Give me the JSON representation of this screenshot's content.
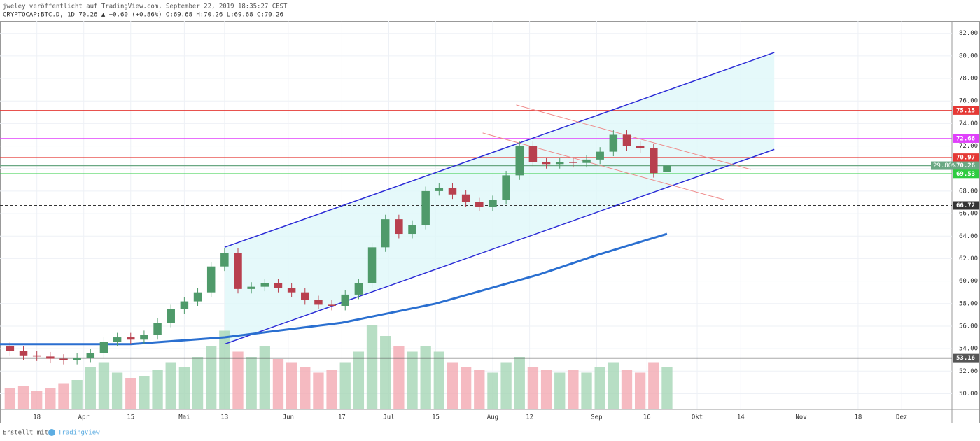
{
  "header": {
    "line1": "jweley veröffentlicht auf TradingView.com, September 22, 2019 18:35:27 CEST",
    "line2": "CRYPTOCAP:BTC.D, 1D 70.26 ▲ +0.60 (+0.86%) O:69.68 H:70.26 L:69.68 C:70.26"
  },
  "footer": {
    "made_with": "Erstellt mit",
    "brand": "TradingView"
  },
  "chart_data": {
    "type": "candlestick",
    "x": [
      "2019-03-10",
      "2019-03-14",
      "2019-03-18",
      "2019-03-22",
      "2019-03-26",
      "2019-03-30",
      "2019-04-03",
      "2019-04-07",
      "2019-04-11",
      "2019-04-15",
      "2019-04-19",
      "2019-04-23",
      "2019-04-27",
      "2019-05-01",
      "2019-05-05",
      "2019-05-09",
      "2019-05-13",
      "2019-05-17",
      "2019-05-21",
      "2019-05-25",
      "2019-05-29",
      "2019-06-02",
      "2019-06-06",
      "2019-06-10",
      "2019-06-14",
      "2019-06-18",
      "2019-06-22",
      "2019-06-26",
      "2019-06-30",
      "2019-07-04",
      "2019-07-08",
      "2019-07-12",
      "2019-07-16",
      "2019-07-20",
      "2019-07-24",
      "2019-07-28",
      "2019-08-01",
      "2019-08-05",
      "2019-08-09",
      "2019-08-13",
      "2019-08-17",
      "2019-08-21",
      "2019-08-25",
      "2019-08-29",
      "2019-09-02",
      "2019-09-06",
      "2019-09-10",
      "2019-09-14",
      "2019-09-18",
      "2019-09-22"
    ],
    "open": [
      54.2,
      53.8,
      53.4,
      53.3,
      53.1,
      53.0,
      53.2,
      53.6,
      54.6,
      55.0,
      54.8,
      55.2,
      56.3,
      57.5,
      58.2,
      59.0,
      61.3,
      62.5,
      59.3,
      59.5,
      59.8,
      59.4,
      59.0,
      58.3,
      57.9,
      57.8,
      58.8,
      59.8,
      63.0,
      65.5,
      64.2,
      65.0,
      68.0,
      68.3,
      67.7,
      67.0,
      66.6,
      67.2,
      69.4,
      72.0,
      70.6,
      70.4,
      70.6,
      70.5,
      70.8,
      71.5,
      73.0,
      72.0,
      71.8,
      69.68
    ],
    "high": [
      54.6,
      54.2,
      53.8,
      53.7,
      53.5,
      53.6,
      54.0,
      55.0,
      55.4,
      55.4,
      55.6,
      56.7,
      57.9,
      58.6,
      59.4,
      61.7,
      62.9,
      62.9,
      59.9,
      60.2,
      60.2,
      59.8,
      59.4,
      58.7,
      58.3,
      59.2,
      60.2,
      63.4,
      65.9,
      65.9,
      65.4,
      68.4,
      68.7,
      68.7,
      68.1,
      67.4,
      67.6,
      69.8,
      72.4,
      72.4,
      71.0,
      71.0,
      71.0,
      71.2,
      71.9,
      73.4,
      73.4,
      72.4,
      72.2,
      70.26
    ],
    "low": [
      53.4,
      53.0,
      52.9,
      52.7,
      52.6,
      52.6,
      52.8,
      53.2,
      54.2,
      54.4,
      54.4,
      54.8,
      55.9,
      57.1,
      57.8,
      58.6,
      60.9,
      58.9,
      58.9,
      59.1,
      59.0,
      58.6,
      57.9,
      57.5,
      57.4,
      57.4,
      58.4,
      59.4,
      62.6,
      63.8,
      63.8,
      64.6,
      67.6,
      67.3,
      66.6,
      66.2,
      66.2,
      66.8,
      69.0,
      70.2,
      70.0,
      70.0,
      70.1,
      70.1,
      70.4,
      71.1,
      71.6,
      71.4,
      69.2,
      69.68
    ],
    "close": [
      53.8,
      53.4,
      53.3,
      53.1,
      53.0,
      53.2,
      53.6,
      54.6,
      55.0,
      54.8,
      55.2,
      56.3,
      57.5,
      58.2,
      59.0,
      61.3,
      62.5,
      59.3,
      59.5,
      59.8,
      59.4,
      59.0,
      58.3,
      57.9,
      57.8,
      58.8,
      59.8,
      63.0,
      65.5,
      64.2,
      65.0,
      68.0,
      68.3,
      67.7,
      67.0,
      66.6,
      67.2,
      69.4,
      72.0,
      70.6,
      70.4,
      70.6,
      70.5,
      70.8,
      71.5,
      73.0,
      72.0,
      71.8,
      69.6,
      70.26
    ],
    "up_color": "#4f9a6a",
    "down_color": "#b8404e",
    "volume": [
      20,
      22,
      18,
      20,
      25,
      28,
      40,
      45,
      35,
      30,
      32,
      38,
      45,
      40,
      50,
      60,
      75,
      55,
      50,
      60,
      48,
      45,
      40,
      35,
      38,
      45,
      55,
      80,
      70,
      60,
      55,
      60,
      55,
      45,
      40,
      38,
      35,
      45,
      50,
      40,
      38,
      35,
      38,
      35,
      40,
      45,
      38,
      35,
      45,
      40
    ],
    "vlim": [
      0,
      100
    ],
    "volume_up_color": "#a5d6b5",
    "volume_down_color": "#f3a9b1",
    "ma": {
      "x": [
        "2019-03-07",
        "2019-04-15",
        "2019-05-13",
        "2019-06-17",
        "2019-07-15",
        "2019-08-15",
        "2019-09-01",
        "2019-09-22"
      ],
      "values": [
        54.4,
        54.4,
        55.0,
        56.3,
        58.0,
        60.6,
        62.3,
        64.2
      ],
      "color": "#2a6fd0"
    },
    "channel": {
      "x": [
        "2019-05-13",
        "2019-10-24"
      ],
      "upper": [
        63.0,
        80.3
      ],
      "lower": [
        54.4,
        71.7
      ],
      "line_color": "#2b2bd6",
      "fill": "#dff7f9"
    },
    "trendlines": [
      {
        "x": [
          "2019-07-29",
          "2019-10-09"
        ],
        "y": [
          73.16,
          67.24
        ],
        "color": "#ef8a8a"
      },
      {
        "x": [
          "2019-08-08",
          "2019-10-17"
        ],
        "y": [
          75.65,
          69.92
        ],
        "color": "#ef8a8a"
      }
    ],
    "levels": [
      {
        "value": 75.15,
        "color": "#e53935",
        "dash": false
      },
      {
        "value": 72.66,
        "color": "#e040fb",
        "dash": false
      },
      {
        "value": 70.97,
        "color": "#e53935",
        "dash": false
      },
      {
        "value": 70.26,
        "color": "#6aa883",
        "dash": false
      },
      {
        "value": 69.53,
        "color": "#2ecc40",
        "dash": false
      },
      {
        "value": 66.72,
        "color": "#333333",
        "dash": true
      },
      {
        "value": 53.16,
        "color": "#555555",
        "dash": false
      }
    ],
    "percent_label": "29.80%",
    "xlim": [
      "2019-03-07",
      "2019-12-16"
    ],
    "xticks": [
      {
        "value": "2019-03-18",
        "label": "18"
      },
      {
        "value": "2019-04-01",
        "label": "Apr"
      },
      {
        "value": "2019-04-15",
        "label": "15"
      },
      {
        "value": "2019-05-01",
        "label": "Mai"
      },
      {
        "value": "2019-05-13",
        "label": "13"
      },
      {
        "value": "2019-06-01",
        "label": "Jun"
      },
      {
        "value": "2019-06-17",
        "label": "17"
      },
      {
        "value": "2019-07-01",
        "label": "Jul"
      },
      {
        "value": "2019-07-15",
        "label": "15"
      },
      {
        "value": "2019-08-01",
        "label": "Aug"
      },
      {
        "value": "2019-08-12",
        "label": "12"
      },
      {
        "value": "2019-09-01",
        "label": "Sep"
      },
      {
        "value": "2019-09-16",
        "label": "16"
      },
      {
        "value": "2019-10-01",
        "label": "Okt"
      },
      {
        "value": "2019-10-14",
        "label": "14"
      },
      {
        "value": "2019-11-01",
        "label": "Nov"
      },
      {
        "value": "2019-11-18",
        "label": "18"
      },
      {
        "value": "2019-12-01",
        "label": "Dez"
      }
    ],
    "ylim": [
      48.6,
      83.1
    ],
    "yticks": [
      {
        "value": 50,
        "label": "50.00"
      },
      {
        "value": 52,
        "label": "52.00"
      },
      {
        "value": 54,
        "label": "54.00"
      },
      {
        "value": 56,
        "label": "56.00"
      },
      {
        "value": 58,
        "label": "58.00"
      },
      {
        "value": 60,
        "label": "60.00"
      },
      {
        "value": 62,
        "label": "62.00"
      },
      {
        "value": 64,
        "label": "64.00"
      },
      {
        "value": 66,
        "label": "66.00"
      },
      {
        "value": 68,
        "label": "68.00"
      },
      {
        "value": 70,
        "label": "70.00"
      },
      {
        "value": 72,
        "label": "72.00"
      },
      {
        "value": 74,
        "label": "74.00"
      },
      {
        "value": 76,
        "label": "76.00"
      },
      {
        "value": 78,
        "label": "78.00"
      },
      {
        "value": 80,
        "label": "80.00"
      },
      {
        "value": 82,
        "label": "82.00"
      }
    ],
    "grid": true
  }
}
